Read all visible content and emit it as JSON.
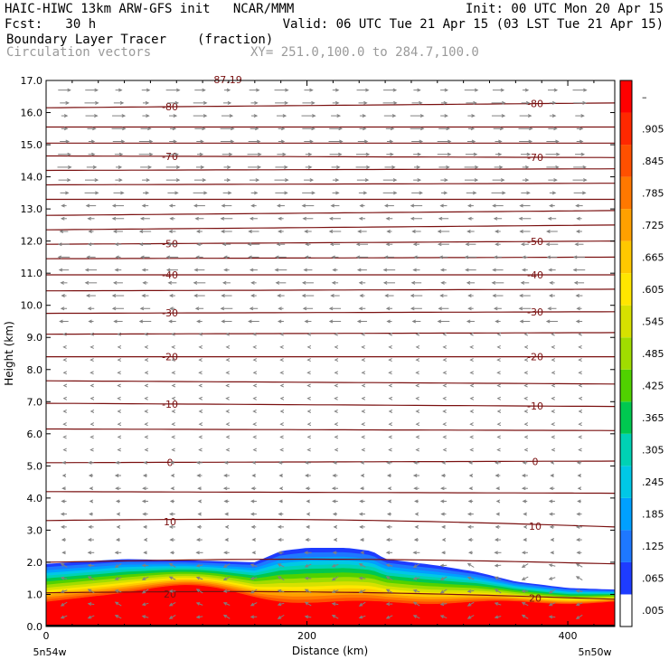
{
  "header": {
    "line1_left": "HAIC-HIWC 13km ARW-GFS init   NCAR/MMM",
    "line1_right": "Init: 00 UTC Mon 20 Apr 15",
    "line2_left": "Fcst:   30 h",
    "line2_right": "Valid: 06 UTC Tue 21 Apr 15 (03 LST Tue 21 Apr 15)",
    "field_name": "Boundary Layer Tracer",
    "field_units": "(fraction)",
    "vectors_label": "Circulation vectors",
    "xy_label": "XY= 251.0,100.0 to 284.7,100.0"
  },
  "chart_data": {
    "type": "heatmap",
    "title": "Boundary Layer Tracer",
    "units": "(fraction)",
    "xlabel": "Distance (km)",
    "ylabel": "Height (km)",
    "xlim": [
      0,
      436
    ],
    "ylim": [
      0,
      17
    ],
    "x_ticks": [
      0,
      200,
      400
    ],
    "x_tick_labels": [
      "0",
      "200",
      "400"
    ],
    "y_ticks": [
      0,
      1,
      2,
      3,
      4,
      5,
      6,
      7,
      8,
      9,
      10,
      11,
      12,
      13,
      14,
      15,
      16,
      17
    ],
    "y_tick_labels": [
      "0.0",
      "1.0",
      "2.0",
      "3.0",
      "4.0",
      "5.0",
      "6.0",
      "7.0",
      "8.0",
      "9.0",
      "10.0",
      "11.0",
      "12.0",
      "13.0",
      "14.0",
      "15.0",
      "16.0",
      "17.0"
    ],
    "x_end_labels": {
      "left": "5n54w",
      "right": "5n50w"
    },
    "colorbar_levels": [
      ".005",
      ".065",
      ".125",
      ".185",
      ".245",
      ".305",
      ".365",
      ".425",
      ".485",
      ".545",
      ".605",
      ".665",
      ".725",
      ".785",
      ".845",
      ".905",
      "–"
    ],
    "colorbar_colors": [
      "#ffffff",
      "#1e3cff",
      "#1e78ff",
      "#00a0ff",
      "#00c8e6",
      "#00d2b4",
      "#00c850",
      "#50d200",
      "#a0dc00",
      "#d7e100",
      "#ffe600",
      "#ffc800",
      "#ffa000",
      "#ff7800",
      "#ff5000",
      "#ff2800",
      "#ff0000"
    ],
    "tracer_top_km": {
      "x": [
        0,
        60,
        120,
        160,
        180,
        200,
        230,
        250,
        260,
        280,
        300,
        330,
        360,
        380,
        400,
        436
      ],
      "y": [
        1.95,
        2.1,
        2.05,
        2.0,
        2.35,
        2.45,
        2.45,
        2.35,
        2.1,
        2.0,
        1.9,
        1.7,
        1.4,
        1.3,
        1.2,
        1.15
      ]
    },
    "isotherm_labels_C": [
      "-80",
      "-70",
      "-50",
      "-40",
      "-30",
      "-20",
      "-10",
      "0",
      "10",
      "20"
    ],
    "top_label": "-87.19",
    "isotherms": [
      {
        "label": "-80",
        "y0": 16.15,
        "y1": 16.3
      },
      {
        "label": "",
        "y0": 15.55,
        "y1": 15.55
      },
      {
        "label": "",
        "y0": 15.05,
        "y1": 15.05
      },
      {
        "label": "-70",
        "y0": 14.65,
        "y1": 14.6
      },
      {
        "label": "",
        "y0": 14.2,
        "y1": 14.25
      },
      {
        "label": "",
        "y0": 13.75,
        "y1": 13.8
      },
      {
        "label": "",
        "y0": 13.3,
        "y1": 13.3
      },
      {
        "label": "",
        "y0": 12.8,
        "y1": 12.95
      },
      {
        "label": "",
        "y0": 12.35,
        "y1": 12.5
      },
      {
        "label": "-50",
        "y0": 11.9,
        "y1": 12.0
      },
      {
        "label": "",
        "y0": 11.45,
        "y1": 11.5
      },
      {
        "label": "-40",
        "y0": 10.95,
        "y1": 10.95
      },
      {
        "label": "",
        "y0": 10.45,
        "y1": 10.5
      },
      {
        "label": "-30",
        "y0": 9.75,
        "y1": 9.8
      },
      {
        "label": "",
        "y0": 9.1,
        "y1": 9.15
      },
      {
        "label": "-20",
        "y0": 8.4,
        "y1": 8.4
      },
      {
        "label": "",
        "y0": 7.65,
        "y1": 7.55
      },
      {
        "label": "-10",
        "y0": 6.95,
        "y1": 6.85
      },
      {
        "label": "",
        "y0": 6.15,
        "y1": 6.1
      },
      {
        "label": "0",
        "y0": 5.1,
        "y1": 5.15
      },
      {
        "label": "",
        "y0": 4.2,
        "y1": 4.15
      },
      {
        "label": "10",
        "y0": 3.3,
        "y1": 3.1
      },
      {
        "label": "",
        "y0": 2.0,
        "y1": 1.95
      },
      {
        "label": "20",
        "y0": 1.05,
        "y1": 0.85
      }
    ]
  }
}
